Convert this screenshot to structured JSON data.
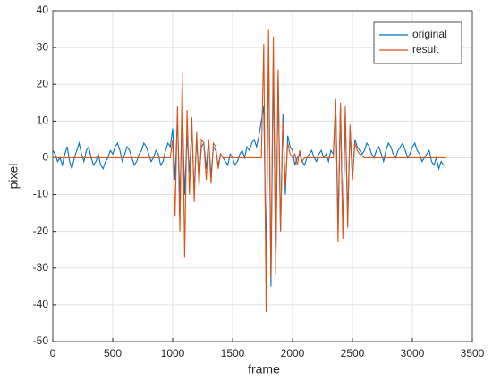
{
  "chart_data": {
    "type": "line",
    "xlabel": "frame",
    "ylabel": "pixel",
    "xlim": [
      0,
      3500
    ],
    "xticks": [
      0,
      500,
      1000,
      1500,
      2000,
      2500,
      3000,
      3500
    ],
    "ylim": [
      -50,
      40
    ],
    "yticks": [
      -50,
      -40,
      -30,
      -20,
      -10,
      0,
      10,
      20,
      30,
      40
    ],
    "grid": true,
    "legend": "northeast",
    "x": [
      0,
      20,
      40,
      60,
      80,
      100,
      120,
      140,
      160,
      180,
      200,
      220,
      240,
      260,
      280,
      300,
      320,
      340,
      360,
      380,
      400,
      420,
      440,
      460,
      480,
      500,
      520,
      540,
      560,
      580,
      600,
      620,
      640,
      660,
      680,
      700,
      720,
      740,
      760,
      780,
      800,
      820,
      840,
      860,
      880,
      900,
      920,
      940,
      960,
      980,
      1000,
      1020,
      1040,
      1060,
      1080,
      1100,
      1120,
      1140,
      1160,
      1180,
      1200,
      1220,
      1240,
      1260,
      1280,
      1300,
      1320,
      1340,
      1360,
      1380,
      1400,
      1420,
      1440,
      1460,
      1480,
      1500,
      1520,
      1540,
      1560,
      1580,
      1600,
      1620,
      1640,
      1660,
      1680,
      1700,
      1720,
      1740,
      1760,
      1780,
      1800,
      1820,
      1840,
      1860,
      1880,
      1900,
      1920,
      1940,
      1960,
      1980,
      2000,
      2020,
      2040,
      2060,
      2080,
      2100,
      2120,
      2140,
      2160,
      2180,
      2200,
      2220,
      2240,
      2260,
      2280,
      2300,
      2320,
      2340,
      2360,
      2380,
      2400,
      2420,
      2440,
      2460,
      2480,
      2500,
      2520,
      2540,
      2560,
      2580,
      2600,
      2620,
      2640,
      2660,
      2680,
      2700,
      2720,
      2740,
      2760,
      2780,
      2800,
      2820,
      2840,
      2860,
      2880,
      2900,
      2920,
      2940,
      2960,
      2980,
      3000,
      3020,
      3040,
      3060,
      3080,
      3100,
      3120,
      3140,
      3160,
      3180,
      3200,
      3220,
      3240,
      3260,
      3280
    ],
    "series": [
      {
        "name": "original",
        "color": "#0072BD",
        "values": [
          2,
          1,
          -1,
          0,
          -2,
          1,
          3,
          -1,
          -3,
          0,
          2,
          4,
          1,
          -1,
          2,
          3,
          0,
          -2,
          -1,
          1,
          -2,
          -3,
          -1,
          0,
          2,
          1,
          3,
          4,
          2,
          -1,
          1,
          3,
          2,
          0,
          -2,
          -1,
          1,
          2,
          4,
          3,
          1,
          -1,
          0,
          2,
          1,
          -2,
          -1,
          2,
          4,
          3,
          8,
          -6,
          11,
          -12,
          14,
          -10,
          6,
          -4,
          8,
          -9,
          5,
          -6,
          3,
          4,
          -3,
          5,
          -5,
          3,
          2,
          -2,
          1,
          0,
          -1,
          -2,
          1,
          0,
          -2,
          -1,
          1,
          2,
          0,
          3,
          2,
          4,
          5,
          3,
          6,
          10,
          14,
          -28,
          30,
          -35,
          27,
          -30,
          22,
          -20,
          12,
          -10,
          6,
          3,
          2,
          -2,
          0,
          1,
          -1,
          -2,
          0,
          1,
          2,
          0,
          -1,
          1,
          2,
          0,
          1,
          -1,
          2,
          1,
          15,
          -18,
          14,
          -20,
          12,
          -16,
          8,
          -6,
          5,
          3,
          2,
          1,
          2,
          4,
          3,
          1,
          0,
          2,
          3,
          1,
          -1,
          2,
          4,
          3,
          1,
          0,
          2,
          3,
          4,
          2,
          0,
          1,
          3,
          4,
          2,
          1,
          -1,
          0,
          1,
          2,
          -1,
          -2,
          0,
          -3,
          -1,
          -2,
          -2
        ]
      },
      {
        "name": "result",
        "color": "#D95319",
        "values": [
          0,
          0,
          0,
          0,
          0,
          0,
          0,
          0,
          0,
          0,
          0,
          0,
          0,
          0,
          0,
          0,
          0,
          0,
          0,
          0,
          0,
          0,
          0,
          0,
          0,
          0,
          0,
          0,
          0,
          0,
          0,
          0,
          0,
          0,
          0,
          0,
          0,
          0,
          0,
          0,
          0,
          0,
          0,
          0,
          0,
          0,
          0,
          0,
          0,
          0,
          5,
          -16,
          14,
          -20,
          23,
          -27,
          13,
          -10,
          11,
          -12,
          7,
          -8,
          5,
          4,
          -6,
          5,
          -7,
          4,
          3,
          -3,
          1,
          0,
          0,
          0,
          0,
          0,
          0,
          0,
          0,
          0,
          0,
          0,
          0,
          0,
          0,
          0,
          0,
          0,
          31,
          -42,
          35,
          -33,
          33,
          -32,
          24,
          -20,
          10,
          -8,
          4,
          1,
          0,
          1,
          -2,
          2,
          -1,
          0,
          0,
          0,
          0,
          0,
          0,
          0,
          0,
          0,
          0,
          0,
          0,
          0,
          16,
          -23,
          15,
          -22,
          14,
          -19,
          9,
          -6,
          4,
          2,
          1,
          0.5,
          0,
          0,
          0,
          0,
          0,
          0,
          0,
          0,
          0,
          0,
          0,
          0,
          0,
          0,
          0,
          0,
          0,
          0,
          0,
          0,
          0,
          0,
          0,
          0,
          0,
          0,
          0,
          0,
          0,
          0,
          0,
          0,
          0,
          0,
          0
        ]
      }
    ]
  }
}
